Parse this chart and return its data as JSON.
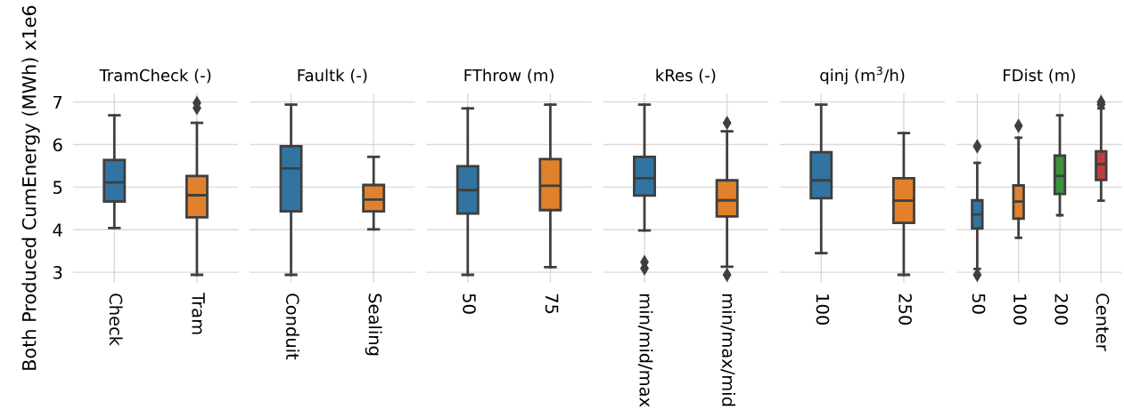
{
  "chart_data": [
    {
      "type": "box",
      "title": "TramCheck (-)",
      "ylabel": "Both Produced CumEnergy (MWh) x1e6",
      "categories": [
        "Check",
        "Tram"
      ],
      "colors": [
        "#3274a1",
        "#e1812c"
      ],
      "ylim": [
        2.75,
        7.2
      ],
      "yticks": [
        3,
        4,
        5,
        6,
        7
      ],
      "grid": true,
      "boxes": [
        {
          "low": 4.04,
          "q1": 4.66,
          "median": 5.11,
          "q3": 5.64,
          "high": 6.69
        },
        {
          "low": 2.94,
          "q1": 4.29,
          "median": 4.81,
          "q3": 5.26,
          "high": 6.51,
          "outliers": [
            6.98,
            6.86
          ]
        }
      ]
    },
    {
      "type": "box",
      "title": "Faultk (-)",
      "categories": [
        "Conduit",
        "Sealing"
      ],
      "colors": [
        "#3274a1",
        "#e1812c"
      ],
      "ylim": [
        2.75,
        7.2
      ],
      "yticks": [
        3,
        4,
        5,
        6,
        7
      ],
      "grid": true,
      "tick_labels": "x",
      "boxes": [
        {
          "low": 2.94,
          "q1": 4.43,
          "median": 5.44,
          "q3": 5.96,
          "high": 6.94
        },
        {
          "low": 4.01,
          "q1": 4.43,
          "median": 4.71,
          "q3": 5.05,
          "high": 5.71
        }
      ]
    },
    {
      "type": "box",
      "title": "FThrow (m)",
      "categories": [
        "50",
        "75"
      ],
      "colors": [
        "#3274a1",
        "#e1812c"
      ],
      "ylim": [
        2.75,
        7.2
      ],
      "yticks": [
        3,
        4,
        5,
        6,
        7
      ],
      "grid": true,
      "tick_labels": "x",
      "boxes": [
        {
          "low": 2.94,
          "q1": 4.38,
          "median": 4.93,
          "q3": 5.49,
          "high": 6.85
        },
        {
          "low": 3.12,
          "q1": 4.46,
          "median": 5.03,
          "q3": 5.66,
          "high": 6.94
        }
      ]
    },
    {
      "type": "box",
      "title": "kRes (-)",
      "categories": [
        "min/mid/max",
        "min/max/mid"
      ],
      "colors": [
        "#3274a1",
        "#e1812c"
      ],
      "ylim": [
        2.75,
        7.2
      ],
      "yticks": [
        3,
        4,
        5,
        6,
        7
      ],
      "grid": true,
      "tick_labels": "x",
      "boxes": [
        {
          "low": 3.98,
          "q1": 4.8,
          "median": 5.21,
          "q3": 5.71,
          "high": 6.94,
          "outliers": [
            3.24,
            3.09
          ]
        },
        {
          "low": 3.13,
          "q1": 4.31,
          "median": 4.69,
          "q3": 5.16,
          "high": 6.31,
          "outliers": [
            6.51,
            2.94
          ]
        }
      ]
    },
    {
      "type": "box",
      "title": "qinj (m$^{3}$/h)",
      "categories": [
        "100",
        "250"
      ],
      "colors": [
        "#3274a1",
        "#e1812c"
      ],
      "ylim": [
        2.75,
        7.2
      ],
      "yticks": [
        3,
        4,
        5,
        6,
        7
      ],
      "grid": true,
      "tick_labels": "x",
      "boxes": [
        {
          "low": 3.45,
          "q1": 4.74,
          "median": 5.16,
          "q3": 5.82,
          "high": 6.94
        },
        {
          "low": 2.94,
          "q1": 4.16,
          "median": 4.68,
          "q3": 5.21,
          "high": 6.27
        }
      ]
    },
    {
      "type": "box",
      "title": "FDist (m)",
      "categories": [
        "50",
        "100",
        "200",
        "Center"
      ],
      "colors": [
        "#3274a1",
        "#e1812c",
        "#3a923a",
        "#c03d3e"
      ],
      "ylim": [
        2.75,
        7.2
      ],
      "yticks": [
        3,
        4,
        5,
        6,
        7
      ],
      "grid": true,
      "tick_labels": "x",
      "boxes": [
        {
          "low": 3.08,
          "q1": 4.03,
          "median": 4.36,
          "q3": 4.69,
          "high": 5.57,
          "outliers": [
            5.96,
            2.94
          ]
        },
        {
          "low": 3.81,
          "q1": 4.26,
          "median": 4.66,
          "q3": 5.04,
          "high": 6.16,
          "outliers": [
            6.44
          ]
        },
        {
          "low": 4.34,
          "q1": 4.84,
          "median": 5.26,
          "q3": 5.74,
          "high": 6.69
        },
        {
          "low": 4.68,
          "q1": 5.17,
          "median": 5.54,
          "q3": 5.84,
          "high": 6.85,
          "outliers": [
            7.0,
            6.94
          ]
        }
      ]
    }
  ]
}
